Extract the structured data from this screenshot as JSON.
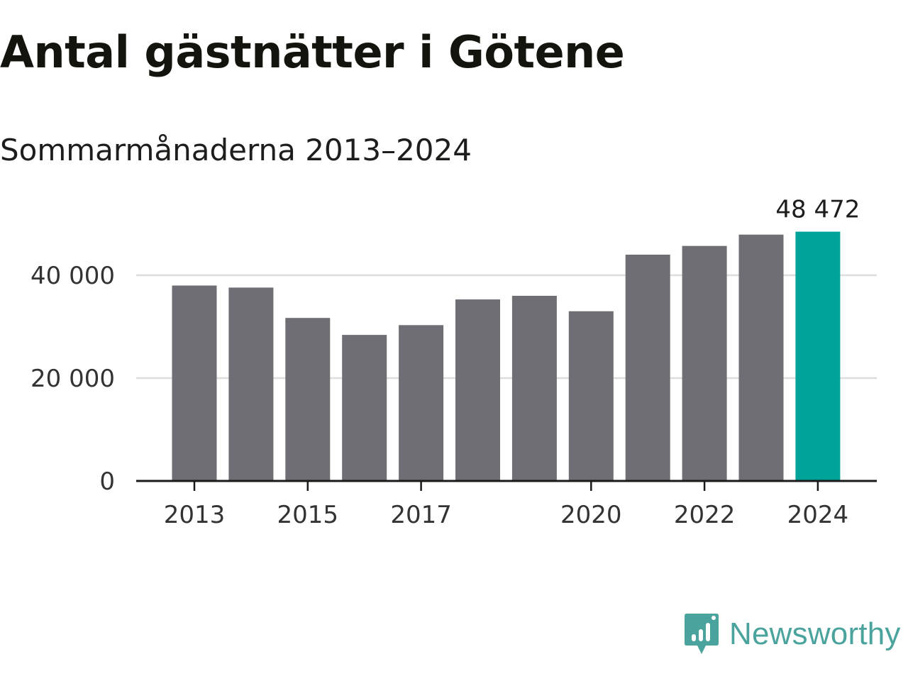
{
  "chart_data": {
    "type": "bar",
    "title": "Antal gästnätter i Götene",
    "subtitle": "Sommarmånaderna 2013–2024",
    "categories": [
      "2013",
      "2014",
      "2015",
      "2016",
      "2017",
      "2018",
      "2019",
      "2020",
      "2021",
      "2022",
      "2023",
      "2024"
    ],
    "values": [
      38000,
      37600,
      31700,
      28400,
      30300,
      35300,
      36000,
      33000,
      44000,
      45700,
      47900,
      48472
    ],
    "x_tick_labels": [
      "2013",
      "2015",
      "2017",
      "2020",
      "2022",
      "2024"
    ],
    "y_ticks": [
      0,
      20000,
      40000
    ],
    "y_tick_labels": [
      "0",
      "20 000",
      "40 000"
    ],
    "ylim": [
      0,
      50000
    ],
    "highlight": {
      "category": "2024",
      "label": "48 472"
    },
    "grid": true,
    "colors": {
      "bar": "#6f6e74",
      "highlight": "#00a39a",
      "grid": "#dddddd",
      "axis": "#1a1a1a"
    }
  },
  "brand": {
    "name": "Newsworthy",
    "color": "#4aa39c",
    "icon": "newsworthy-logo-icon"
  }
}
